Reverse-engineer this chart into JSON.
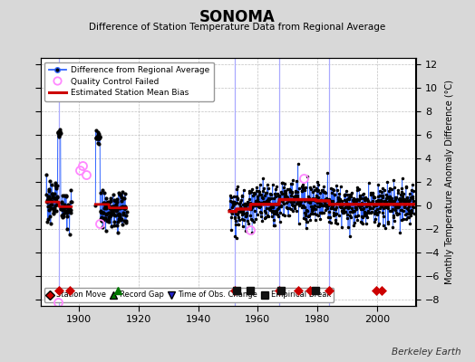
{
  "title": "SONOMA",
  "subtitle": "Difference of Station Temperature Data from Regional Average",
  "ylabel_right": "Monthly Temperature Anomaly Difference (°C)",
  "credit": "Berkeley Earth",
  "xlim": [
    1887,
    2013
  ],
  "ylim": [
    -8.5,
    12.5
  ],
  "yticks": [
    -8,
    -6,
    -4,
    -2,
    0,
    2,
    4,
    6,
    8,
    10,
    12
  ],
  "xticks": [
    1900,
    1920,
    1940,
    1960,
    1980,
    2000
  ],
  "bg_color": "#d8d8d8",
  "plot_bg_color": "#ffffff",
  "grid_color": "#c0c0c0",
  "vline_color": "#aaaaff",
  "station_move_color": "#cc0000",
  "record_gap_color": "#007700",
  "tobs_color": "#2222cc",
  "empirical_color": "#111111",
  "diff_line_color": "#3366ff",
  "diff_marker_color": "#000000",
  "bias_color": "#cc0000",
  "qc_color": "#ff88ff",
  "event_y": -7.2,
  "station_moves": [
    1893.3,
    1897.0,
    1952.2,
    1967.2,
    1973.5,
    1977.5,
    1984.0,
    1999.8,
    2001.5
  ],
  "record_gaps": [
    1913.0
  ],
  "tobs_changes": [],
  "empirical_breaks": [
    1952.8,
    1957.5,
    1967.8,
    1979.5
  ],
  "vlines_x": [
    1893.3,
    1952.2,
    1967.2,
    1984.0
  ],
  "vline_lw": 0.9,
  "seg1_x_start": 1889.0,
  "seg1_x_end": 1897.5,
  "seg2_x_start": 1905.5,
  "seg2_x_end": 1916.0,
  "seg3_x_start": 1950.5,
  "seg3_x_end": 2012.5,
  "noise_seed": 123
}
